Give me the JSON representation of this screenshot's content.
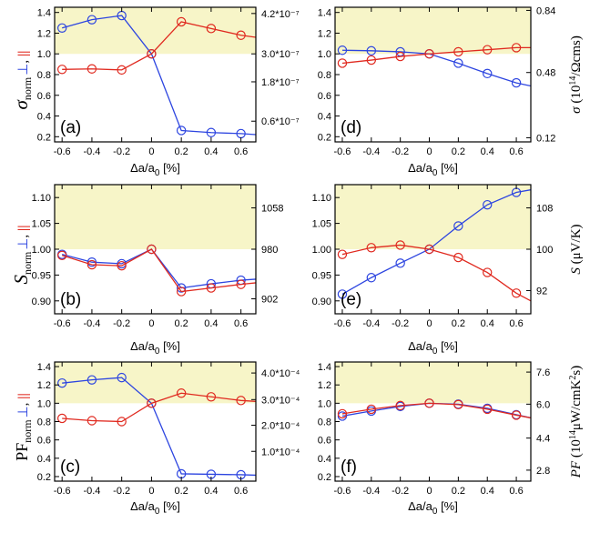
{
  "figure": {
    "x_axis_label_main": "Δa/a",
    "x_axis_label_sub": "0",
    "x_axis_label_unit": " [%]",
    "perp_symbol": "⊥",
    "par_symbol": "||",
    "perp_color": "#2d45e0",
    "par_color": "#e0291f",
    "band_color": "#f7f5c8"
  },
  "chart_data": [
    {
      "id": "a",
      "type": "line",
      "panel_label": "(a)",
      "x": [
        -0.6,
        -0.4,
        -0.2,
        0,
        0.2,
        0.4,
        0.6
      ],
      "xlim": [
        -0.65,
        0.7
      ],
      "xticks": [
        "-0.6",
        "-0.4",
        "-0.2",
        "0",
        "0.2",
        "0.4",
        "0.6"
      ],
      "ylim": [
        0.15,
        1.45
      ],
      "yticks": [
        0.2,
        0.4,
        0.6,
        0.8,
        1.0,
        1.2,
        1.4
      ],
      "ytick_labels": [
        "0.2",
        "0.4",
        "0.6",
        "0.8",
        "1.0",
        "1.2",
        "1.4"
      ],
      "band_from": 1.0,
      "ylabel_main": "σ",
      "ylabel_sub": "norm",
      "right_ticks": [
        {
          "pos": 0.35,
          "label": "0.6*10⁻⁷"
        },
        {
          "pos": 0.73,
          "label": "1.8*10⁻⁷"
        },
        {
          "pos": 1.0,
          "label": "3.0*10⁻⁷"
        },
        {
          "pos": 1.39,
          "label": "4.2*10⁻⁷"
        }
      ],
      "series": [
        {
          "name": "⊥",
          "color": "#2d45e0",
          "values": [
            1.25,
            1.33,
            1.37,
            1.0,
            0.26,
            0.24,
            0.23
          ],
          "line_end": 0.22
        },
        {
          "name": "||",
          "color": "#e0291f",
          "values": [
            0.85,
            0.855,
            0.845,
            1.0,
            1.31,
            1.245,
            1.18
          ],
          "line_end": 1.16
        }
      ]
    },
    {
      "id": "d",
      "type": "line",
      "panel_label": "(d)",
      "x": [
        -0.6,
        -0.4,
        -0.2,
        0,
        0.2,
        0.4,
        0.6
      ],
      "xlim": [
        -0.65,
        0.7
      ],
      "xticks": [
        "-0.6",
        "-0.4",
        "-0.2",
        "0",
        "0.2",
        "0.4",
        "0.6"
      ],
      "ylim": [
        0.15,
        1.45
      ],
      "yticks": [
        0.2,
        0.4,
        0.6,
        0.8,
        1.0,
        1.2,
        1.4
      ],
      "ytick_labels": [
        "0.2",
        "0.4",
        "0.6",
        "0.8",
        "1.0",
        "1.2",
        "1.4"
      ],
      "band_from": 1.0,
      "ylabel_right_main": "σ",
      "ylabel_right_rest": " (10",
      "ylabel_right_sup": "14",
      "ylabel_right_tail": "/Ωcms)",
      "right_ticks": [
        {
          "pos": 0.19,
          "label": "0.12"
        },
        {
          "pos": 0.82,
          "label": "0.48"
        },
        {
          "pos": 1.42,
          "label": "0.84"
        }
      ],
      "series": [
        {
          "name": "⊥",
          "color": "#2d45e0",
          "values": [
            1.035,
            1.03,
            1.02,
            1.0,
            0.91,
            0.81,
            0.72
          ],
          "line_end": 0.69
        },
        {
          "name": "||",
          "color": "#e0291f",
          "values": [
            0.91,
            0.94,
            0.975,
            1.0,
            1.02,
            1.04,
            1.06
          ],
          "line_end": 1.06
        }
      ]
    },
    {
      "id": "b",
      "type": "line",
      "panel_label": "(b)",
      "x": [
        -0.6,
        -0.4,
        -0.2,
        0,
        0.2,
        0.4,
        0.6
      ],
      "xlim": [
        -0.65,
        0.7
      ],
      "xticks": [
        "-0.6",
        "-0.4",
        "-0.2",
        "0",
        "0.2",
        "0.4",
        "0.6"
      ],
      "ylim": [
        0.875,
        1.125
      ],
      "yticks": [
        0.9,
        0.95,
        1.0,
        1.05,
        1.1
      ],
      "ytick_labels": [
        "0.90",
        "0.95",
        "1.00",
        "1.05",
        "1.10"
      ],
      "band_from": 1.0,
      "ylabel_main": "S",
      "ylabel_sub": "norm",
      "right_ticks": [
        {
          "pos": 0.904,
          "label": "902"
        },
        {
          "pos": 1.0,
          "label": "980"
        },
        {
          "pos": 1.08,
          "label": "1058"
        }
      ],
      "series": [
        {
          "name": "⊥",
          "color": "#2d45e0",
          "values": [
            0.99,
            0.975,
            0.972,
            1.0,
            0.925,
            0.933,
            0.94
          ],
          "line_end": 0.942
        },
        {
          "name": "||",
          "color": "#e0291f",
          "values": [
            0.988,
            0.97,
            0.968,
            1.0,
            0.918,
            0.925,
            0.932
          ],
          "line_end": 0.935
        }
      ]
    },
    {
      "id": "e",
      "type": "line",
      "panel_label": "(e)",
      "x": [
        -0.6,
        -0.4,
        -0.2,
        0,
        0.2,
        0.4,
        0.6
      ],
      "xlim": [
        -0.65,
        0.7
      ],
      "xticks": [
        "-0.6",
        "-0.4",
        "-0.2",
        "0",
        "0.2",
        "0.4",
        "0.6"
      ],
      "ylim": [
        0.875,
        1.125
      ],
      "yticks": [
        0.9,
        0.95,
        1.0,
        1.05,
        1.1
      ],
      "ytick_labels": [
        "0.90",
        "0.95",
        "1.00",
        "1.05",
        "1.10"
      ],
      "band_from": 1.0,
      "ylabel_right_main": "S",
      "ylabel_right_rest": " (μV/K)",
      "right_ticks": [
        {
          "pos": 0.92,
          "label": "92"
        },
        {
          "pos": 1.0,
          "label": "100"
        },
        {
          "pos": 1.08,
          "label": "108"
        }
      ],
      "series": [
        {
          "name": "⊥",
          "color": "#2d45e0",
          "values": [
            0.913,
            0.945,
            0.973,
            1.0,
            1.045,
            1.086,
            1.11
          ],
          "line_end": 1.115
        },
        {
          "name": "||",
          "color": "#e0291f",
          "values": [
            0.99,
            1.003,
            1.008,
            1.0,
            0.984,
            0.955,
            0.915
          ],
          "line_end": 0.9
        }
      ]
    },
    {
      "id": "c",
      "type": "line",
      "panel_label": "(c)",
      "x": [
        -0.6,
        -0.4,
        -0.2,
        0,
        0.2,
        0.4,
        0.6
      ],
      "xlim": [
        -0.65,
        0.7
      ],
      "xticks": [
        "-0.6",
        "-0.4",
        "-0.2",
        "0",
        "0.2",
        "0.4",
        "0.6"
      ],
      "ylim": [
        0.15,
        1.45
      ],
      "yticks": [
        0.2,
        0.4,
        0.6,
        0.8,
        1.0,
        1.2,
        1.4
      ],
      "ytick_labels": [
        "0.2",
        "0.4",
        "0.6",
        "0.8",
        "1.0",
        "1.2",
        "1.4"
      ],
      "band_from": 1.0,
      "ylabel_main": "PF",
      "ylabel_sub": "norm",
      "right_ticks": [
        {
          "pos": 0.475,
          "label": "1.0*10⁻⁴"
        },
        {
          "pos": 0.76,
          "label": "2.0*10⁻⁴"
        },
        {
          "pos": 1.04,
          "label": "3.0*10⁻⁴"
        },
        {
          "pos": 1.33,
          "label": "4.0*10⁻⁴"
        }
      ],
      "series": [
        {
          "name": "⊥",
          "color": "#2d45e0",
          "values": [
            1.22,
            1.255,
            1.28,
            1.0,
            0.23,
            0.225,
            0.22
          ],
          "line_end": 0.215
        },
        {
          "name": "||",
          "color": "#e0291f",
          "values": [
            0.835,
            0.81,
            0.8,
            1.0,
            1.11,
            1.07,
            1.03
          ],
          "line_end": 1.02
        }
      ]
    },
    {
      "id": "f",
      "type": "line",
      "panel_label": "(f)",
      "x": [
        -0.6,
        -0.4,
        -0.2,
        0,
        0.2,
        0.4,
        0.6
      ],
      "xlim": [
        -0.65,
        0.7
      ],
      "xticks": [
        "-0.6",
        "-0.4",
        "-0.2",
        "0",
        "0.2",
        "0.4",
        "0.6"
      ],
      "ylim": [
        0.15,
        1.45
      ],
      "yticks": [
        0.2,
        0.4,
        0.6,
        0.8,
        1.0,
        1.2,
        1.4
      ],
      "ytick_labels": [
        "0.2",
        "0.4",
        "0.6",
        "0.8",
        "1.0",
        "1.2",
        "1.4"
      ],
      "band_from": 1.0,
      "ylabel_right_main": "PF",
      "ylabel_right_rest": " (10",
      "ylabel_right_sup": "14",
      "ylabel_right_tail": "μW/cmK",
      "ylabel_right_sup2": "2",
      "ylabel_right_tail2": "s)",
      "right_ticks": [
        {
          "pos": 0.27,
          "label": "2.8"
        },
        {
          "pos": 0.62,
          "label": "4.4"
        },
        {
          "pos": 0.99,
          "label": "6.0"
        },
        {
          "pos": 1.34,
          "label": "7.6"
        }
      ],
      "series": [
        {
          "name": "⊥",
          "color": "#2d45e0",
          "values": [
            0.86,
            0.915,
            0.965,
            1.0,
            0.99,
            0.945,
            0.875
          ],
          "line_end": 0.84
        },
        {
          "name": "||",
          "color": "#e0291f",
          "values": [
            0.885,
            0.935,
            0.975,
            1.0,
            0.985,
            0.935,
            0.87
          ],
          "line_end": 0.84
        }
      ]
    }
  ]
}
